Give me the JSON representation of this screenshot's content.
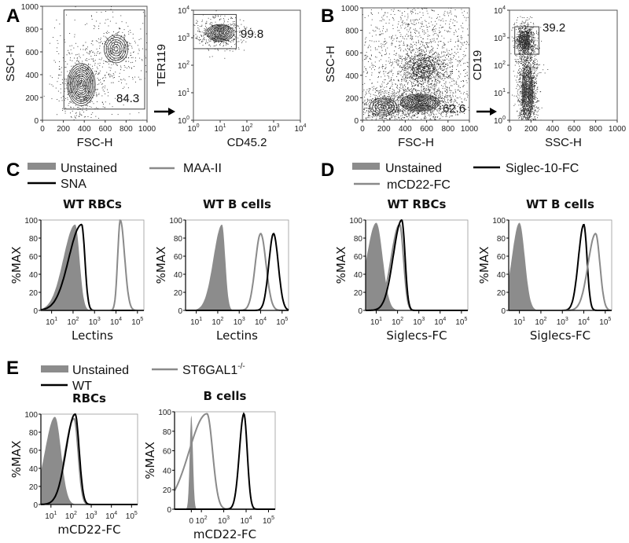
{
  "panels": {
    "A": "A",
    "B": "B",
    "C": "C",
    "D": "D",
    "E": "E"
  },
  "legends": {
    "C": {
      "unstained": "Unstained",
      "maa": "MAA-II",
      "sna": "SNA"
    },
    "D": {
      "unstained": "Unstained",
      "siglec10": "Siglec-10-FC",
      "mcd22": "mCD22-FC"
    },
    "E": {
      "unstained": "Unstained",
      "st6": "ST6GAL1",
      "st6_sup": "-/-",
      "wt": "WT"
    }
  },
  "colors": {
    "unstained_fill": "#8c8c8c",
    "gray_line": "#8a8a8a",
    "black_line": "#000000"
  },
  "chart_data": [
    {
      "id": "A1",
      "type": "scatter",
      "panel": "A",
      "xlabel": "FSC-H",
      "ylabel": "SSC-H",
      "xscale": "linear",
      "yscale": "linear",
      "xlim": [
        0,
        1023
      ],
      "ylim": [
        0,
        1023
      ],
      "xticks": [
        "0",
        "200",
        "400",
        "600",
        "800",
        "1000"
      ],
      "yticks": [
        "0",
        "200",
        "400",
        "600",
        "800",
        "1000"
      ],
      "gate": {
        "x": [
          210,
          1000
        ],
        "y": [
          100,
          990
        ],
        "value": "84.3"
      },
      "populations": [
        {
          "center": [
            380,
            320
          ],
          "spread": [
            80,
            110
          ],
          "dots": 500,
          "contours": 10
        },
        {
          "center": [
            720,
            640
          ],
          "spread": [
            70,
            75
          ],
          "dots": 250,
          "contours": 6
        },
        {
          "center": [
            650,
            500
          ],
          "spread": [
            250,
            250
          ],
          "dots": 300,
          "contours": 0
        }
      ]
    },
    {
      "id": "A2",
      "type": "scatter",
      "panel": "A",
      "xlabel": "CD45.2",
      "ylabel": "TER119",
      "xscale": "log",
      "yscale": "log",
      "xlim": [
        1,
        10000
      ],
      "ylim": [
        1,
        10000
      ],
      "xticks": [
        "10^0",
        "10^1",
        "10^2",
        "10^3",
        "10^4"
      ],
      "yticks": [
        "10^0",
        "10^1",
        "10^2",
        "10^3",
        "10^4"
      ],
      "gate": {
        "x": [
          1,
          40
        ],
        "y": [
          400,
          7000
        ],
        "value": "99.8"
      },
      "populations": [
        {
          "center": [
            10,
            1500
          ],
          "spread": [
            0.3,
            0.18
          ],
          "dots": 500,
          "contours": 8
        }
      ]
    },
    {
      "id": "B1",
      "type": "scatter",
      "panel": "B",
      "xlabel": "FSC-H",
      "ylabel": "SSC-H",
      "xscale": "linear",
      "yscale": "linear",
      "xlim": [
        0,
        1023
      ],
      "ylim": [
        0,
        1023
      ],
      "xticks": [
        "0",
        "200",
        "400",
        "600",
        "800",
        "1000"
      ],
      "yticks": [
        "0",
        "200",
        "400",
        "600",
        "800",
        "1000"
      ],
      "gate": null,
      "value_label": "62.6",
      "populations": [
        {
          "center": [
            580,
            470
          ],
          "spread": [
            70,
            55
          ],
          "dots": 900,
          "contours": 2
        },
        {
          "center": [
            550,
            160
          ],
          "spread": [
            110,
            45
          ],
          "dots": 900,
          "contours": 9
        },
        {
          "center": [
            200,
            120
          ],
          "spread": [
            80,
            50
          ],
          "dots": 500,
          "contours": 5
        },
        {
          "center": [
            550,
            550
          ],
          "spread": [
            260,
            260
          ],
          "dots": 2200,
          "contours": 0
        }
      ]
    },
    {
      "id": "B2",
      "type": "scatter",
      "panel": "B",
      "xlabel": "SSC-H",
      "ylabel": "CD19",
      "xscale": "linear",
      "yscale": "log",
      "xlim": [
        0,
        1023
      ],
      "ylim": [
        1,
        10000
      ],
      "xticks": [
        "0",
        "200",
        "400",
        "600",
        "800",
        "1000"
      ],
      "yticks": [
        "10^0",
        "10^1",
        "10^2",
        "10^3",
        "10^4"
      ],
      "gate": {
        "x": [
          50,
          280
        ],
        "y": [
          250,
          2500
        ],
        "value": "39.2"
      },
      "populations": [
        {
          "center": [
            140,
            800
          ],
          "spread": [
            30,
            0.2
          ],
          "dots": 800,
          "contours": 4
        },
        {
          "center": [
            170,
            10
          ],
          "spread": [
            30,
            0.6
          ],
          "dots": 1400,
          "contours": 6
        }
      ]
    },
    {
      "id": "C1",
      "type": "histogram",
      "panel": "C",
      "title": "WT RBCs",
      "xlabel": "Lectins",
      "ylabel": "%MAX",
      "xlim_log10": [
        0.5,
        5.3
      ],
      "ylim": [
        0,
        100
      ],
      "xticks": [
        {
          "label": "10^1",
          "log10": 1
        },
        {
          "label": "10^2",
          "log10": 2
        },
        {
          "label": "10^3",
          "log10": 3
        },
        {
          "label": "10^4",
          "log10": 4
        },
        {
          "label": "10^5",
          "log10": 5
        }
      ],
      "yticks": [
        "0",
        "20",
        "40",
        "60",
        "80",
        "100"
      ],
      "series": [
        {
          "name": "Unstained",
          "style": "fill",
          "peak_log10": 2.1,
          "height": 95,
          "sd": [
            0.55,
            0.2
          ]
        },
        {
          "name": "SNA",
          "style": "black",
          "peak_log10": 2.4,
          "height": 95,
          "sd": [
            0.6,
            0.15
          ]
        },
        {
          "name": "MAA-II",
          "style": "gray",
          "peak_log10": 4.2,
          "height": 100,
          "sd": [
            0.12,
            0.2
          ]
        }
      ]
    },
    {
      "id": "C2",
      "type": "histogram",
      "panel": "C",
      "title": "WT B cells",
      "xlabel": "Lectins",
      "ylabel": "%MAX",
      "xlim_log10": [
        0.5,
        5.3
      ],
      "ylim": [
        0,
        100
      ],
      "xticks": [
        {
          "label": "10^1",
          "log10": 1
        },
        {
          "label": "10^2",
          "log10": 2
        },
        {
          "label": "10^3",
          "log10": 3
        },
        {
          "label": "10^4",
          "log10": 4
        },
        {
          "label": "10^5",
          "log10": 5
        }
      ],
      "yticks": [
        "0",
        "20",
        "40",
        "60",
        "80",
        "100"
      ],
      "series": [
        {
          "name": "Unstained",
          "style": "fill",
          "peak_log10": 2.2,
          "height": 95,
          "sd": [
            0.4,
            0.15
          ]
        },
        {
          "name": "MAA-II",
          "style": "gray",
          "peak_log10": 4.0,
          "height": 85,
          "sd": [
            0.25,
            0.25
          ]
        },
        {
          "name": "SNA",
          "style": "black",
          "peak_log10": 4.6,
          "height": 85,
          "sd": [
            0.22,
            0.22
          ]
        }
      ]
    },
    {
      "id": "D1",
      "type": "histogram",
      "panel": "D",
      "title": "WT RBCs",
      "xlabel": "Siglecs-FC",
      "ylabel": "%MAX",
      "xlim_log10": [
        0.5,
        5.3
      ],
      "ylim": [
        0,
        100
      ],
      "xticks": [
        {
          "label": "10^1",
          "log10": 1
        },
        {
          "label": "10^2",
          "log10": 2
        },
        {
          "label": "10^3",
          "log10": 3
        },
        {
          "label": "10^4",
          "log10": 4
        },
        {
          "label": "10^5",
          "log10": 5
        }
      ],
      "yticks": [
        "0",
        "20",
        "40",
        "60",
        "80",
        "100"
      ],
      "series": [
        {
          "name": "Unstained",
          "style": "fill",
          "peak_log10": 1.0,
          "height": 97,
          "sd": [
            0.45,
            0.3
          ]
        },
        {
          "name": "mCD22-FC",
          "style": "gray",
          "peak_log10": 2.1,
          "height": 95,
          "sd": [
            0.4,
            0.18
          ]
        },
        {
          "name": "Siglec-10-FC",
          "style": "black",
          "peak_log10": 2.2,
          "height": 100,
          "sd": [
            0.4,
            0.15
          ]
        }
      ]
    },
    {
      "id": "D2",
      "type": "histogram",
      "panel": "D",
      "title": "WT B cells",
      "xlabel": "Siglecs-FC",
      "ylabel": "%MAX",
      "xlim_log10": [
        0.5,
        5.3
      ],
      "ylim": [
        0,
        100
      ],
      "xticks": [
        {
          "label": "10^1",
          "log10": 1
        },
        {
          "label": "10^2",
          "log10": 2
        },
        {
          "label": "10^3",
          "log10": 3
        },
        {
          "label": "10^4",
          "log10": 4
        },
        {
          "label": "10^5",
          "log10": 5
        }
      ],
      "yticks": [
        "0",
        "20",
        "40",
        "60",
        "80",
        "100"
      ],
      "series": [
        {
          "name": "Unstained",
          "style": "fill",
          "peak_log10": 1.0,
          "height": 97,
          "sd": [
            0.35,
            0.25
          ]
        },
        {
          "name": "Siglec-10-FC",
          "style": "black",
          "peak_log10": 4.0,
          "height": 95,
          "sd": [
            0.25,
            0.15
          ]
        },
        {
          "name": "mCD22-FC",
          "style": "gray",
          "peak_log10": 4.55,
          "height": 85,
          "sd": [
            0.35,
            0.2
          ]
        }
      ]
    },
    {
      "id": "E1",
      "type": "histogram",
      "panel": "E",
      "title": "RBCs",
      "xlabel": "mCD22-FC",
      "ylabel": "%MAX",
      "xlim_log10": [
        0.5,
        5.3
      ],
      "ylim": [
        0,
        100
      ],
      "xticks": [
        {
          "label": "10^1",
          "log10": 1
        },
        {
          "label": "10^2",
          "log10": 2
        },
        {
          "label": "10^3",
          "log10": 3
        },
        {
          "label": "10^4",
          "log10": 4
        },
        {
          "label": "10^5",
          "log10": 5
        }
      ],
      "yticks": [
        "0",
        "20",
        "40",
        "60",
        "80",
        "100"
      ],
      "series": [
        {
          "name": "Unstained",
          "style": "fill",
          "peak_log10": 1.2,
          "height": 97,
          "sd": [
            0.5,
            0.3
          ]
        },
        {
          "name": "ST6GAL1-/-",
          "style": "gray",
          "peak_log10": 2.15,
          "height": 95,
          "sd": [
            0.45,
            0.2
          ]
        },
        {
          "name": "WT",
          "style": "black",
          "peak_log10": 2.2,
          "height": 100,
          "sd": [
            0.45,
            0.2
          ]
        }
      ]
    },
    {
      "id": "E2",
      "type": "histogram",
      "panel": "E",
      "title": "B cells",
      "xlabel": "mCD22-FC",
      "ylabel": "%MAX",
      "xlim_log10": [
        0.8,
        5.3
      ],
      "ylim": [
        0,
        100
      ],
      "xticks": [
        {
          "label": "0",
          "log10": 1.55
        },
        {
          "label": "10^2",
          "log10": 2
        },
        {
          "label": "10^3",
          "log10": 3
        },
        {
          "label": "10^4",
          "log10": 4
        },
        {
          "label": "10^5",
          "log10": 5
        }
      ],
      "yticks": [
        "0",
        "20",
        "40",
        "60",
        "80",
        "100"
      ],
      "series": [
        {
          "name": "Unstained",
          "style": "fill",
          "peak_log10": 1.55,
          "height": 97,
          "sd": [
            0.07,
            0.07
          ]
        },
        {
          "name": "ST6GAL1-/-",
          "style": "gray",
          "peak_log10": 2.25,
          "height": 98,
          "sd": [
            0.8,
            0.25
          ]
        },
        {
          "name": "WT",
          "style": "black",
          "peak_log10": 3.9,
          "height": 98,
          "sd": [
            0.2,
            0.15
          ]
        }
      ]
    }
  ]
}
